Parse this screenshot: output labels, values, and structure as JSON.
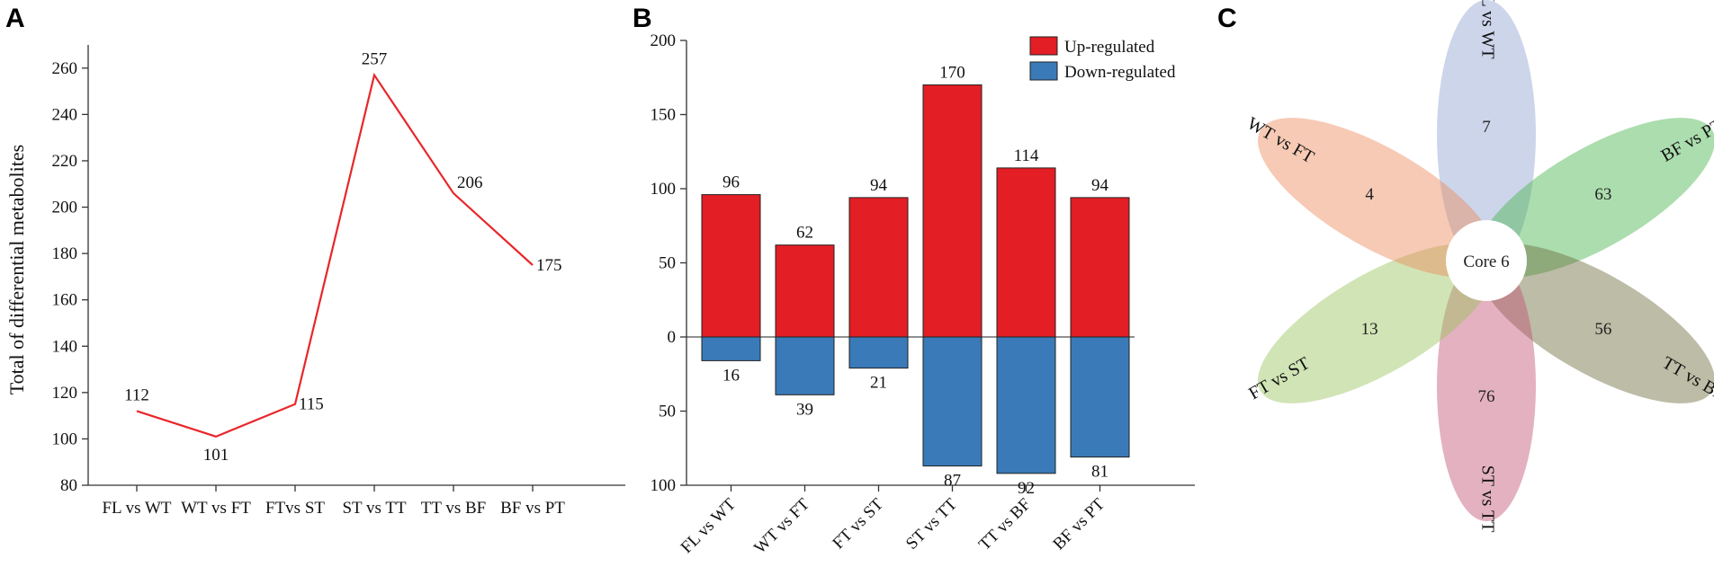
{
  "panels": {
    "a": "A",
    "b": "B",
    "c": "C"
  },
  "chart_data": [
    {
      "type": "line",
      "panel": "A",
      "ylabel": "Total of differential metabolites",
      "xlabel": "",
      "categories": [
        "FL vs WT",
        "WT vs FT",
        "FTvs ST",
        "ST vs TT",
        "TT vs BF",
        "BF vs PT"
      ],
      "values": [
        112,
        101,
        115,
        257,
        206,
        175
      ],
      "data_labels": [
        "112",
        "101",
        "115",
        "257",
        "206",
        "175"
      ],
      "ylim": [
        80,
        270
      ],
      "yticks": [
        80,
        100,
        120,
        140,
        160,
        180,
        200,
        220,
        240,
        260
      ],
      "color": "#e8262a"
    },
    {
      "type": "bar",
      "panel": "B",
      "categories": [
        "FL vs WT",
        "WT vs FT",
        "FT vs ST",
        "ST vs TT",
        "TT vs BF",
        "BF vs PT"
      ],
      "series": [
        {
          "name": "Up-regulated",
          "values": [
            96,
            62,
            94,
            170,
            114,
            94
          ],
          "color": "#e31e24"
        },
        {
          "name": "Down-regulated",
          "values": [
            16,
            39,
            21,
            87,
            92,
            81
          ],
          "color": "#3a7ab8"
        }
      ],
      "ylim": [
        -100,
        200
      ],
      "yticks": [
        200,
        150,
        100,
        50,
        0,
        -50,
        -100
      ],
      "ytick_labels": [
        "200",
        "150",
        "100",
        "50",
        "0",
        "50",
        "100"
      ],
      "legend_position": "top-right"
    },
    {
      "type": "venn",
      "panel": "C",
      "sets": [
        {
          "name": "FL vs WT",
          "unique": 7,
          "color": "#8da2d0"
        },
        {
          "name": "BF vs PT",
          "unique": 63,
          "color": "#48b34c"
        },
        {
          "name": "TT vs BF",
          "unique": 56,
          "color": "#6b6b3b"
        },
        {
          "name": "ST vs TT",
          "unique": 76,
          "color": "#c25273"
        },
        {
          "name": "FT vs ST",
          "unique": 13,
          "color": "#98c35a"
        },
        {
          "name": "WT vs FT",
          "unique": 4,
          "color": "#ec8a5c"
        }
      ],
      "core_label": "Core 6"
    }
  ]
}
